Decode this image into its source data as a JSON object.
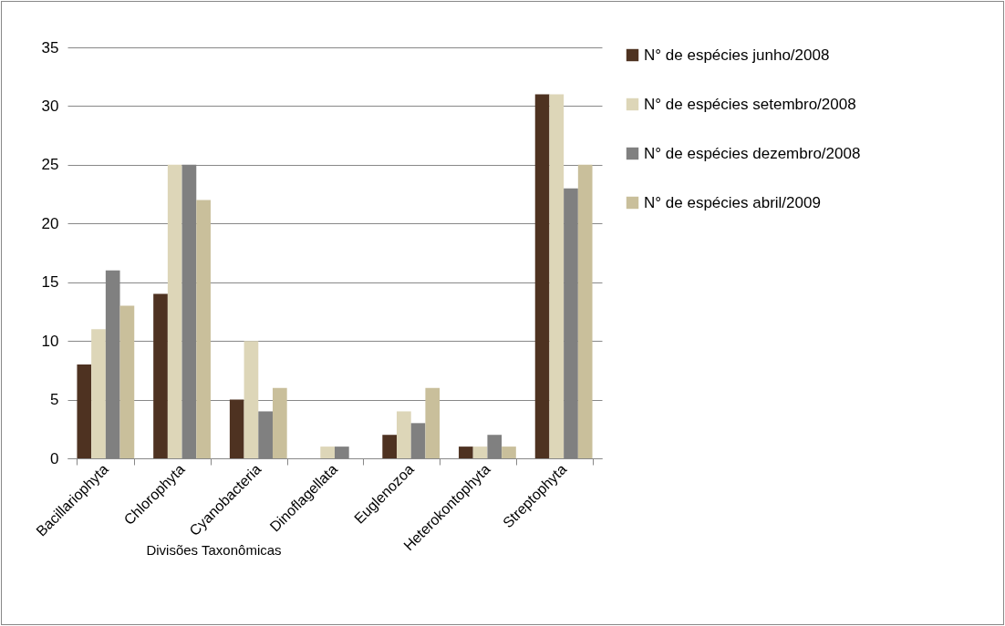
{
  "chart_data": {
    "type": "bar",
    "xlabel": "Divisões Taxonômicas",
    "categories": [
      "Bacillariophyta",
      "Chlorophyta",
      "Cyanobacteria",
      "Dinoflagellata",
      "Euglenozoa",
      "Heterokontophyta",
      "Streptophyta"
    ],
    "series": [
      {
        "name": "N° de espécies junho/2008",
        "color": "#4e3221",
        "values": [
          8,
          14,
          5,
          0,
          2,
          1,
          31
        ]
      },
      {
        "name": "N° de espécies setembro/2008",
        "color": "#ddd6b8",
        "values": [
          11,
          25,
          10,
          1,
          4,
          1,
          31
        ]
      },
      {
        "name": "N° de espécies dezembro/2008",
        "color": "#808080",
        "values": [
          16,
          25,
          4,
          1,
          3,
          2,
          23
        ]
      },
      {
        "name": "N° de espécies abril/2009",
        "color": "#c9bf9b",
        "values": [
          13,
          22,
          6,
          0,
          6,
          1,
          25
        ]
      }
    ],
    "ylim": [
      0,
      35
    ],
    "yticks": [
      0,
      5,
      10,
      15,
      20,
      25,
      30,
      35
    ],
    "grid": "y",
    "legend": "right"
  }
}
